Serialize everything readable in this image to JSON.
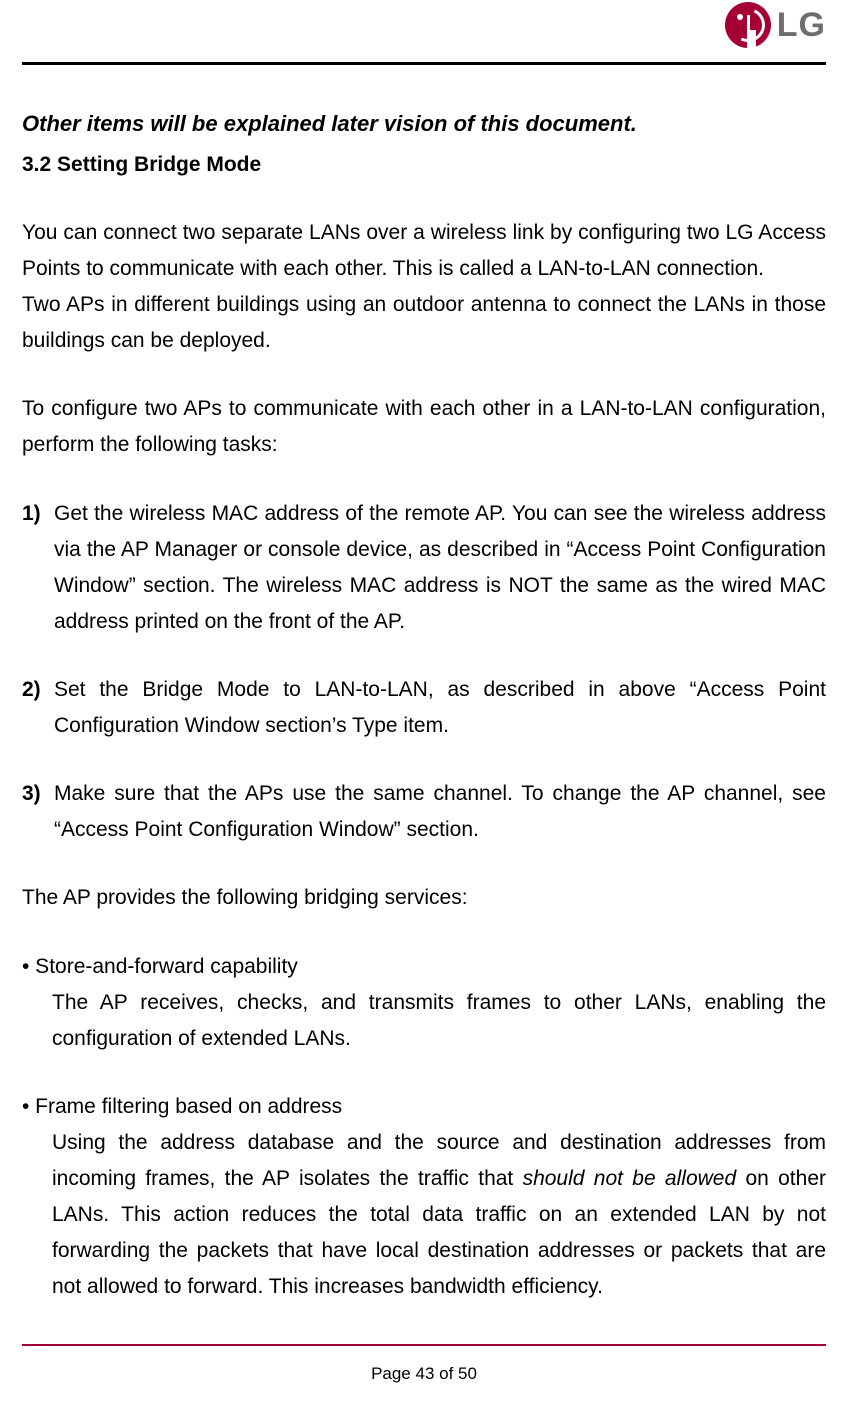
{
  "brand": "LG",
  "header_rule_color": "#000000",
  "footer_rule_color": "#a50034",
  "logo_bg": "#a50034",
  "intro_italic": "Other items will be explained later vision of this document.",
  "section_heading": "3.2 Setting Bridge Mode",
  "p1": "You can connect two separate LANs over a wireless link by configuring two LG Access Points to communicate with each other. This is called a LAN-to-LAN connection.",
  "p1b": "Two APs in different buildings using an outdoor antenna to connect the LANs in those buildings can be deployed.",
  "p2": "To configure two APs to communicate with each other in a LAN-to-LAN configuration, perform the following tasks:",
  "steps": [
    {
      "n": "1)",
      "t": "Get the wireless MAC address of the remote AP. You can see the wireless address via the AP Manager or console device, as described in “Access Point Configuration Window” section. The wireless MAC address is NOT the same as the wired MAC address printed on the front of the AP."
    },
    {
      "n": "2)",
      "t": "Set the Bridge Mode to LAN-to-LAN, as described in above “Access Point Configuration Window section’s Type item."
    },
    {
      "n": "3)",
      "t": "Make sure that the APs use the same channel. To change the AP channel, see “Access Point Configuration Window” section."
    }
  ],
  "p3": "The AP provides the following bridging services:",
  "bullets": [
    {
      "title": "• Store-and-forward capability",
      "body": "The AP receives, checks, and transmits frames to other LANs, enabling the configuration of extended LANs."
    },
    {
      "title": "• Frame filtering based on address",
      "body_pre": "Using the address database and the source and destination addresses from incoming frames, the AP isolates the traffic that ",
      "body_it": "should not be allowed",
      "body_post": " on other LANs. This action reduces the total data traffic on an extended LAN by not forwarding the packets that have local destination addresses or packets that are not allowed to forward. This increases bandwidth efficiency."
    }
  ],
  "page_label": "Page 43 of 50"
}
